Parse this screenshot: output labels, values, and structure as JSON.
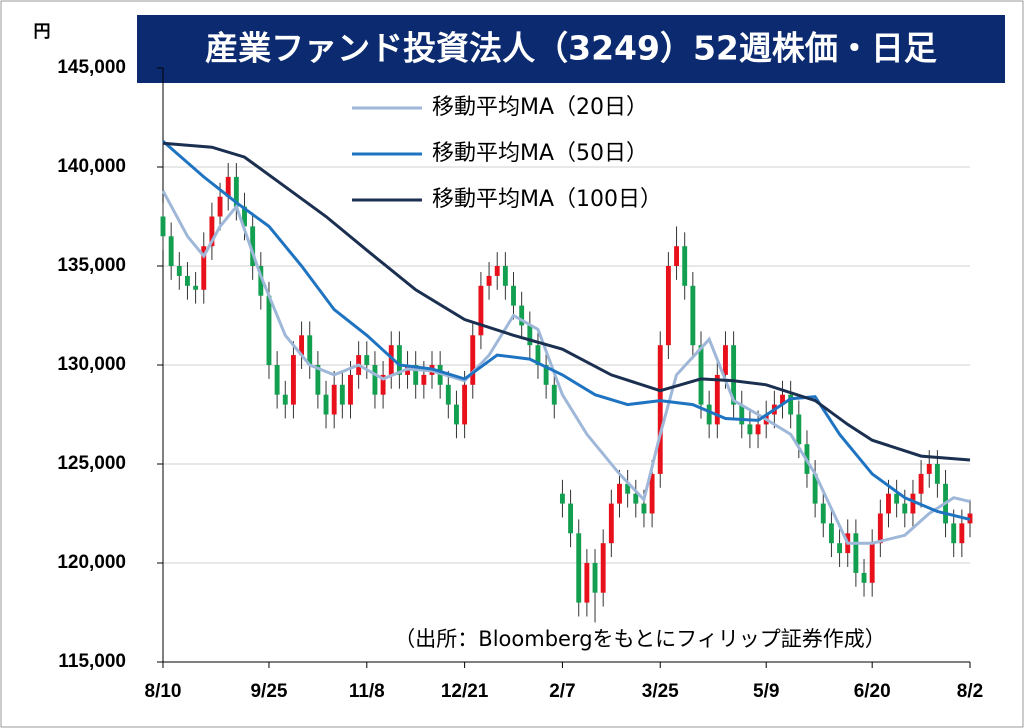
{
  "chart_data": {
    "type": "candlestick",
    "title": "産業ファンド投資法人（3249）52週株価・日足",
    "y_unit": "円",
    "source": "（出所：Bloombergをもとにフィリップ証券作成）",
    "ylim": [
      115000,
      145000
    ],
    "yticks": [
      {
        "value": 115000,
        "label": "115,000"
      },
      {
        "value": 120000,
        "label": "120,000"
      },
      {
        "value": 125000,
        "label": "125,000"
      },
      {
        "value": 130000,
        "label": "130,000"
      },
      {
        "value": 135000,
        "label": "135,000"
      },
      {
        "value": 140000,
        "label": "140,000"
      },
      {
        "value": 145000,
        "label": "145,000"
      }
    ],
    "grid": true,
    "up_color": "#e8101a",
    "down_color": "#12a050",
    "categories": [
      "8/10",
      null,
      null,
      null,
      null,
      null,
      null,
      null,
      null,
      null,
      null,
      null,
      null,
      "9/25",
      null,
      null,
      null,
      null,
      null,
      null,
      null,
      null,
      null,
      null,
      null,
      "11/8",
      null,
      null,
      null,
      null,
      null,
      null,
      null,
      null,
      null,
      null,
      null,
      "12/21",
      null,
      null,
      null,
      null,
      null,
      null,
      null,
      null,
      null,
      null,
      null,
      "2/7",
      null,
      null,
      null,
      null,
      null,
      null,
      null,
      null,
      null,
      null,
      null,
      "3/25",
      null,
      null,
      null,
      null,
      null,
      null,
      null,
      null,
      null,
      null,
      null,
      null,
      "5/9",
      null,
      null,
      null,
      null,
      null,
      null,
      null,
      null,
      null,
      null,
      null,
      null,
      "6/20",
      null,
      null,
      null,
      null,
      null,
      null,
      null,
      null,
      null,
      null,
      null,
      "8/2"
    ],
    "open": [
      137500,
      136500,
      135000,
      134500,
      134000,
      133800,
      136000,
      137500,
      138500,
      139500,
      138000,
      137000,
      135000,
      133500,
      130000,
      128500,
      128000,
      130500,
      131500,
      130000,
      128500,
      127500,
      129000,
      128000,
      129500,
      130500,
      130000,
      128500,
      129500,
      131000,
      129500,
      130000,
      129000,
      129500,
      130000,
      129000,
      128000,
      127000,
      129000,
      131500,
      134000,
      134500,
      135000,
      134000,
      133000,
      132000,
      131000,
      130000,
      129000,
      123500,
      123000,
      121500,
      118000,
      120000,
      118500,
      121000,
      123000,
      124000,
      123500,
      123000,
      122500,
      124500,
      131000,
      135000,
      136000,
      134000,
      131000,
      128000,
      127000,
      129500,
      131000,
      128000,
      127000,
      126500,
      127000,
      127500,
      128000,
      128500,
      127500,
      126000,
      124500,
      123000,
      122000,
      121000,
      120500,
      121500,
      119500,
      119000,
      121000,
      122500,
      123500,
      123000,
      122500,
      123500,
      124500,
      125000,
      124000,
      122000,
      121000,
      122000
    ],
    "high": [
      138200,
      137200,
      135700,
      135200,
      134700,
      136700,
      138200,
      139200,
      140200,
      140200,
      138700,
      137700,
      135700,
      134200,
      130700,
      129200,
      131200,
      132200,
      132200,
      130700,
      129200,
      129700,
      129700,
      130200,
      131200,
      131200,
      130700,
      130200,
      131700,
      131700,
      130700,
      130700,
      130200,
      130700,
      130700,
      129700,
      128700,
      129700,
      132200,
      134700,
      135200,
      135700,
      135700,
      134700,
      133700,
      132700,
      131700,
      130700,
      129700,
      124200,
      123700,
      122200,
      120700,
      120700,
      121700,
      123700,
      124700,
      124700,
      124200,
      123700,
      125200,
      131700,
      135700,
      137000,
      136700,
      134700,
      131700,
      128700,
      130200,
      131700,
      131700,
      128700,
      127700,
      127700,
      128200,
      128700,
      129200,
      129200,
      128200,
      126700,
      125200,
      123700,
      122700,
      121700,
      122200,
      122200,
      120200,
      121700,
      123200,
      124200,
      124200,
      123700,
      124200,
      125200,
      125700,
      125700,
      124700,
      122700,
      122700,
      123200
    ],
    "low": [
      135800,
      134300,
      133800,
      133300,
      133100,
      133100,
      135300,
      136800,
      137800,
      137300,
      136300,
      134300,
      132800,
      129300,
      127800,
      127300,
      127300,
      129800,
      129300,
      127800,
      126800,
      126800,
      127300,
      127300,
      128800,
      129300,
      127800,
      127800,
      128800,
      128800,
      128800,
      128300,
      128300,
      128800,
      128300,
      127300,
      126300,
      126300,
      128300,
      130800,
      133300,
      133800,
      133300,
      132300,
      131300,
      130300,
      129300,
      128300,
      127300,
      122300,
      120800,
      117300,
      117300,
      117000,
      117800,
      120300,
      122300,
      122800,
      122300,
      121800,
      121800,
      123800,
      130300,
      134300,
      133300,
      130300,
      127300,
      126300,
      126300,
      128800,
      127300,
      126300,
      125800,
      125800,
      126300,
      126800,
      127300,
      126800,
      125300,
      123800,
      122300,
      121300,
      120300,
      119800,
      119800,
      118800,
      118300,
      118300,
      120300,
      121800,
      122300,
      121800,
      121800,
      122800,
      123800,
      123300,
      121300,
      120300,
      120300,
      121300
    ],
    "close": [
      136500,
      135000,
      134500,
      134000,
      133800,
      136000,
      137500,
      138500,
      139500,
      138000,
      137000,
      135000,
      133500,
      130000,
      128500,
      128000,
      130500,
      131500,
      130000,
      128500,
      127500,
      129000,
      128000,
      129500,
      130500,
      130000,
      128500,
      129500,
      131000,
      129500,
      130000,
      129000,
      129500,
      130000,
      129000,
      128000,
      127000,
      129000,
      131500,
      134000,
      134500,
      135000,
      134000,
      133000,
      132000,
      131000,
      130000,
      129000,
      128000,
      123000,
      121500,
      118000,
      120000,
      118500,
      121000,
      123000,
      124000,
      123500,
      123000,
      122500,
      124500,
      131000,
      135000,
      136000,
      134000,
      131000,
      128000,
      127000,
      129500,
      131000,
      128000,
      127000,
      126500,
      127000,
      127500,
      128000,
      128500,
      127500,
      126000,
      124500,
      123000,
      122000,
      121000,
      120500,
      121500,
      119500,
      119000,
      121000,
      122500,
      123500,
      123000,
      122500,
      123500,
      124500,
      125000,
      124000,
      122000,
      121000,
      122000,
      122500
    ],
    "series": [
      {
        "name": "移動平均MA（20日）",
        "color": "#9fb7d8",
        "x": [
          0,
          3,
          5,
          7,
          9,
          12,
          15,
          18,
          21,
          24,
          27,
          30,
          33,
          37,
          40,
          43,
          46,
          49,
          52,
          56,
          59,
          61,
          63,
          67,
          70,
          73,
          77,
          80,
          84,
          87,
          91,
          94,
          97,
          99
        ],
        "values": [
          138800,
          136500,
          135500,
          137000,
          138000,
          134500,
          131500,
          130000,
          129500,
          130000,
          129300,
          129800,
          129700,
          129200,
          130500,
          132500,
          131800,
          128500,
          126500,
          124500,
          123200,
          126500,
          129500,
          131300,
          128200,
          127500,
          126500,
          124500,
          121000,
          121000,
          121400,
          122500,
          123300,
          123100
        ]
      },
      {
        "name": "移動平均MA（50日）",
        "color": "#1f74c2",
        "x": [
          0,
          5,
          9,
          13,
          17,
          21,
          25,
          29,
          33,
          37,
          41,
          45,
          49,
          53,
          57,
          61,
          65,
          69,
          73,
          77,
          80,
          83,
          87,
          91,
          95,
          99
        ],
        "values": [
          141300,
          139500,
          138200,
          137000,
          135000,
          132800,
          131500,
          130000,
          129800,
          129300,
          130500,
          130300,
          129500,
          128500,
          128000,
          128200,
          128000,
          127300,
          127200,
          128300,
          128400,
          126500,
          124500,
          123300,
          122600,
          122200
        ]
      },
      {
        "name": "移動平均MA（100日）",
        "color": "#1b3050",
        "x": [
          0,
          6,
          10,
          15,
          20,
          25,
          31,
          37,
          43,
          49,
          55,
          61,
          66,
          70,
          74,
          80,
          84,
          87,
          93,
          99
        ],
        "values": [
          141200,
          141000,
          140500,
          139000,
          137500,
          135800,
          133800,
          132300,
          131500,
          130800,
          129500,
          128700,
          129300,
          129200,
          129000,
          128200,
          127000,
          126200,
          125400,
          125200
        ]
      }
    ]
  }
}
